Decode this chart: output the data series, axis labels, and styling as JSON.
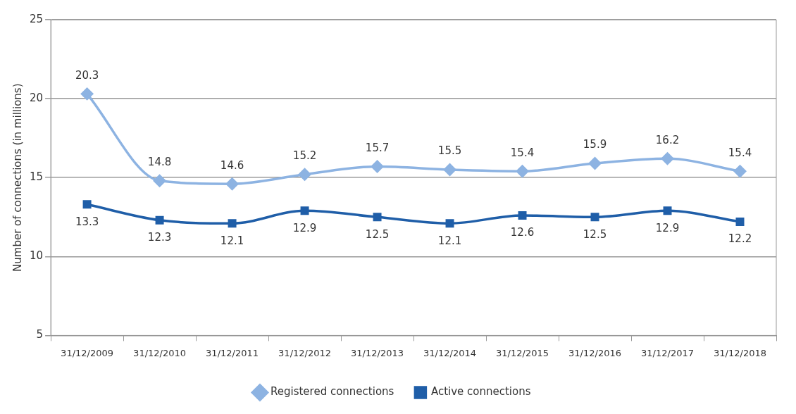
{
  "chart_data": {
    "type": "line",
    "ylabel": "Number of connections (in millions)",
    "categories": [
      "31/12/2009",
      "31/12/2010",
      "31/12/2011",
      "31/12/2012",
      "31/12/2013",
      "31/12/2014",
      "31/12/2015",
      "31/12/2016",
      "31/12/2017",
      "31/12/2018"
    ],
    "series": [
      {
        "name": "Registered connections",
        "color": "#8db3e2",
        "marker": "diamond",
        "values": [
          20.3,
          14.8,
          14.6,
          15.2,
          15.7,
          15.5,
          15.4,
          15.9,
          16.2,
          15.4
        ]
      },
      {
        "name": "Active connections",
        "color": "#1f5ea8",
        "marker": "square",
        "values": [
          13.3,
          12.3,
          12.1,
          12.9,
          12.5,
          12.1,
          12.6,
          12.5,
          12.9,
          12.2
        ]
      }
    ],
    "ylim": [
      5,
      25
    ],
    "yticks": [
      5,
      10,
      15,
      20,
      25
    ],
    "grid": "y",
    "legend": "bottom",
    "data_labels": true
  }
}
